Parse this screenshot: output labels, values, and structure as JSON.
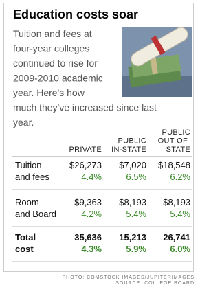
{
  "header": {
    "title": "Education costs soar"
  },
  "intro": {
    "lines": [
      "Tuition and fees at",
      "four-year colleges",
      "continued to rise for",
      "2009-2010 academic",
      "year. Here's how",
      "much they've increased since last",
      "year."
    ]
  },
  "table": {
    "columns": [
      [
        "PRIVATE"
      ],
      [
        "PUBLIC",
        "IN-STATE"
      ],
      [
        "PUBLIC",
        "OUT-OF-",
        "STATE"
      ]
    ],
    "rows": [
      {
        "label": [
          "Tuition",
          "and fees"
        ],
        "cells": [
          [
            "$26,273",
            "4.4%"
          ],
          [
            "$7,020",
            "6.5%"
          ],
          [
            "$18,548",
            "6.2%"
          ]
        ]
      },
      {
        "label": [
          "Room",
          "and Board"
        ],
        "cells": [
          [
            "$9,363",
            "4.2%"
          ],
          [
            "$8,193",
            "5.4%"
          ],
          [
            "$8,193",
            "5.4%"
          ]
        ]
      },
      {
        "label": [
          "Total",
          "cost"
        ],
        "cells": [
          [
            "35,636",
            "4.3%"
          ],
          [
            "15,213",
            "5.9%"
          ],
          [
            "26,741",
            "6.0%"
          ]
        ]
      }
    ]
  },
  "footer": {
    "credits": [
      "PHOTO: COMSTOCK IMAGES/JUPITERIMAGES",
      "SOURCE: COLLEGE BOARD"
    ]
  }
}
